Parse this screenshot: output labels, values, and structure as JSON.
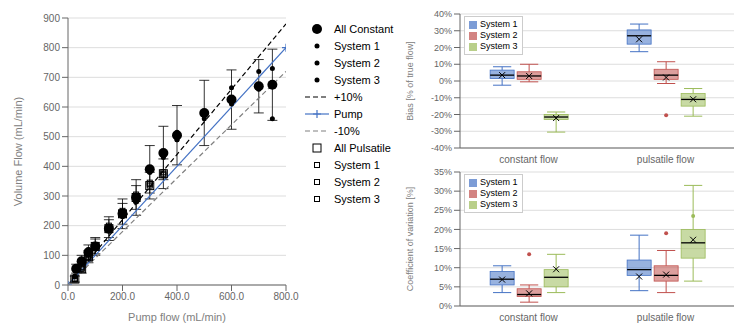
{
  "chart_data": [
    {
      "type": "scatter",
      "xlabel": "Pump flow (mL/min)",
      "ylabel": "Volume Flow (mL/min)",
      "xlim": [
        0.0,
        800.0
      ],
      "ylim": [
        0,
        900
      ],
      "xticks": [
        {
          "value": 0.0,
          "label": "0.0"
        },
        {
          "value": 200.0,
          "label": "200.0"
        },
        {
          "value": 400.0,
          "label": "400.0"
        },
        {
          "value": 600.0,
          "label": "600.0"
        },
        {
          "value": 800.0,
          "label": "800.0"
        }
      ],
      "yticks": [
        0,
        100,
        200,
        300,
        400,
        500,
        600,
        700,
        800,
        900
      ],
      "grid": true,
      "legend": "right",
      "series": [
        {
          "name": "All Constant",
          "type": "scatter",
          "marker": "circle",
          "color": "black",
          "x": [
            30,
            50,
            75,
            100,
            150,
            200,
            250,
            300,
            350,
            400,
            500,
            600,
            700,
            750
          ],
          "y": [
            55,
            80,
            110,
            130,
            190,
            240,
            295,
            390,
            445,
            505,
            580,
            625,
            670,
            675
          ],
          "yerr": [
            15,
            20,
            25,
            30,
            40,
            50,
            60,
            80,
            90,
            100,
            110,
            100,
            90,
            120
          ]
        },
        {
          "name": "System 1",
          "type": "scatter",
          "marker": "circle",
          "color": "black",
          "x": [
            25,
            30,
            50,
            75,
            100,
            150,
            200,
            250,
            300,
            350,
            400,
            500,
            600,
            700
          ],
          "y": [
            30,
            55,
            85,
            120,
            135,
            185,
            235,
            285,
            380,
            435,
            490,
            570,
            610,
            660
          ]
        },
        {
          "name": "System 2",
          "type": "scatter",
          "marker": "circle",
          "color": "black",
          "x": [
            750,
            25,
            30,
            50,
            75,
            100,
            150,
            200,
            250,
            300,
            350,
            400,
            500,
            600
          ],
          "y": [
            730,
            28,
            50,
            80,
            110,
            130,
            190,
            245,
            300,
            395,
            450,
            515,
            580,
            665
          ]
        },
        {
          "name": "System 3",
          "type": "scatter",
          "marker": "circle",
          "color": "black",
          "x": [
            700,
            750,
            25,
            30,
            50,
            75,
            100,
            150,
            200,
            250,
            300,
            350,
            400,
            500
          ],
          "y": [
            720,
            560,
            28,
            50,
            80,
            100,
            125,
            185,
            230,
            280,
            380,
            430,
            490,
            560
          ]
        },
        {
          "name": "+10%",
          "type": "line",
          "line_style": "dashed",
          "color": "black",
          "x": [
            0,
            800
          ],
          "y": [
            0,
            880
          ]
        },
        {
          "name": "Pump",
          "type": "line",
          "line_style": "solid",
          "marker": "plus",
          "color": "#4472C4",
          "x": [
            0,
            800
          ],
          "y": [
            0,
            800
          ]
        },
        {
          "name": "-10%",
          "type": "line",
          "line_style": "dashed",
          "color": "gray",
          "x": [
            0,
            800
          ],
          "y": [
            0,
            720
          ]
        },
        {
          "name": "All Pulsatile",
          "type": "scatter",
          "marker": "open_square",
          "color": "black",
          "x": [
            25,
            50,
            75,
            100,
            150,
            200,
            250,
            300,
            350
          ],
          "y": [
            20,
            55,
            95,
            130,
            190,
            240,
            295,
            335,
            375
          ],
          "yerr": [
            10,
            15,
            20,
            25,
            30,
            35,
            40,
            45,
            50
          ]
        },
        {
          "name": "System 1",
          "type": "scatter",
          "marker": "open_square",
          "color": "black",
          "x": [
            25,
            50,
            75,
            100,
            150,
            200,
            250,
            300,
            350
          ],
          "y": [
            18,
            55,
            90,
            125,
            185,
            240,
            285,
            335,
            375
          ]
        },
        {
          "name": "System 2",
          "type": "scatter",
          "marker": "open_square",
          "color": "black",
          "x": [
            25,
            50,
            75,
            100,
            150,
            200,
            250,
            300,
            350
          ],
          "y": [
            20,
            55,
            95,
            130,
            190,
            250,
            305,
            345,
            370
          ]
        },
        {
          "name": "System 3",
          "type": "scatter",
          "marker": "open_square",
          "color": "black",
          "x": [
            25,
            50,
            75,
            100,
            150,
            200,
            250,
            300,
            350
          ],
          "y": [
            22,
            60,
            100,
            135,
            200,
            245,
            295,
            340,
            380
          ]
        }
      ]
    },
    {
      "type": "box",
      "ylabel": "Bias [% of true flow]",
      "ylim": [
        -40,
        40
      ],
      "yticks": [
        {
          "value": 40,
          "label": "40%"
        },
        {
          "value": 30,
          "label": "30%"
        },
        {
          "value": 20,
          "label": "20%"
        },
        {
          "value": 10,
          "label": "10%"
        },
        {
          "value": 0,
          "label": "0%"
        },
        {
          "value": -10,
          "label": "-10%"
        },
        {
          "value": -20,
          "label": "-20%"
        },
        {
          "value": -30,
          "label": "-30%"
        },
        {
          "value": -40,
          "label": "-40%"
        }
      ],
      "categories": [
        "constant flow",
        "pulsatile flow"
      ],
      "grid": true,
      "legend": "upper left",
      "series": [
        {
          "name": "System 1",
          "color": "#4472C4",
          "q1": [
            1.5,
            22.0
          ],
          "median": [
            3.5,
            27.0
          ],
          "q3": [
            6.5,
            30.5
          ],
          "whislo": [
            -2.5,
            17.5
          ],
          "whishi": [
            8.5,
            34.0
          ],
          "mean": [
            3.5,
            24.9
          ],
          "fliers": [
            [],
            []
          ]
        },
        {
          "name": "System 2",
          "color": "#C0504D",
          "q1": [
            1.0,
            1.0
          ],
          "median": [
            3.0,
            3.5
          ],
          "q3": [
            5.5,
            7.0
          ],
          "whislo": [
            -0.5,
            -1.5
          ],
          "whishi": [
            10.0,
            11.5
          ],
          "mean": [
            3.0,
            2.1
          ],
          "fliers": [
            [],
            [
              -20.5
            ]
          ]
        },
        {
          "name": "System 3",
          "color": "#9BBB59",
          "q1": [
            -23.0,
            -15.0
          ],
          "median": [
            -21.5,
            -11.0
          ],
          "q3": [
            -20.0,
            -7.5
          ],
          "whislo": [
            -30.5,
            -21.0
          ],
          "whishi": [
            -18.5,
            -4.5
          ],
          "mean": [
            -22.1,
            -10.9
          ],
          "fliers": [
            [],
            []
          ]
        }
      ]
    },
    {
      "type": "box",
      "ylabel": "Coefficient of variation [%]",
      "ylim": [
        0,
        35
      ],
      "yticks": [
        {
          "value": 0,
          "label": "0%"
        },
        {
          "value": 5,
          "label": "5%"
        },
        {
          "value": 10,
          "label": "10%"
        },
        {
          "value": 15,
          "label": "15%"
        },
        {
          "value": 20,
          "label": "20%"
        },
        {
          "value": 25,
          "label": "25%"
        },
        {
          "value": 30,
          "label": "30%"
        },
        {
          "value": 35,
          "label": "35%"
        }
      ],
      "categories": [
        "constant flow",
        "pulsatile flow"
      ],
      "grid": true,
      "legend": "upper left",
      "series": [
        {
          "name": "System 1",
          "color": "#4472C4",
          "q1": [
            5.5,
            8.0
          ],
          "median": [
            7.0,
            9.5
          ],
          "q3": [
            9.0,
            12.0
          ],
          "whislo": [
            3.5,
            4.0
          ],
          "whishi": [
            10.5,
            18.5
          ],
          "mean": [
            6.9,
            7.7
          ],
          "fliers": [
            [],
            []
          ]
        },
        {
          "name": "System 2",
          "color": "#C0504D",
          "q1": [
            2.5,
            6.5
          ],
          "median": [
            3.0,
            8.0
          ],
          "q3": [
            4.5,
            10.5
          ],
          "whislo": [
            1.0,
            3.5
          ],
          "whishi": [
            5.5,
            14.5
          ],
          "mean": [
            3.3,
            8.2
          ],
          "fliers": [
            [
              13.5
            ],
            [
              19.0
            ]
          ]
        },
        {
          "name": "System 3",
          "color": "#9BBB59",
          "q1": [
            5.0,
            12.5
          ],
          "median": [
            7.5,
            16.5
          ],
          "q3": [
            9.5,
            20.0
          ],
          "whislo": [
            3.5,
            6.5
          ],
          "whishi": [
            13.5,
            31.5
          ],
          "mean": [
            9.6,
            17.3
          ],
          "fliers": [
            [],
            [
              23.5
            ]
          ]
        }
      ]
    }
  ]
}
